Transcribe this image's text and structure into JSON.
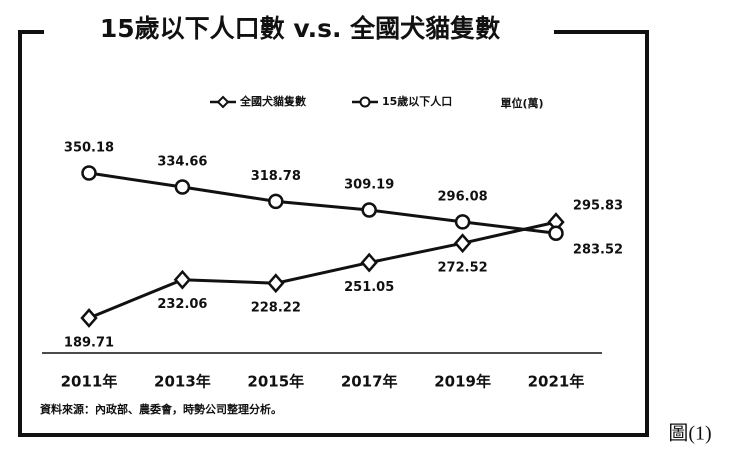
{
  "chart_data": {
    "type": "line",
    "title": "15歲以下人口數 v.s. 全國犬貓隻數",
    "unit_label": "單位(萬)",
    "source": "資料來源：內政部、農委會，時勢公司整理分析。",
    "caption": "圖(1)",
    "categories": [
      "2011年",
      "2013年",
      "2015年",
      "2017年",
      "2019年",
      "2021年"
    ],
    "series": [
      {
        "name": "全國犬貓隻數",
        "color": "#111111",
        "marker": "diamond",
        "values": [
          189.71,
          232.06,
          228.22,
          251.05,
          272.52,
          295.83
        ]
      },
      {
        "name": "15歲以下人口",
        "color": "#111111",
        "marker": "circle",
        "values": [
          350.18,
          334.66,
          318.78,
          309.19,
          296.08,
          283.52
        ]
      }
    ]
  }
}
